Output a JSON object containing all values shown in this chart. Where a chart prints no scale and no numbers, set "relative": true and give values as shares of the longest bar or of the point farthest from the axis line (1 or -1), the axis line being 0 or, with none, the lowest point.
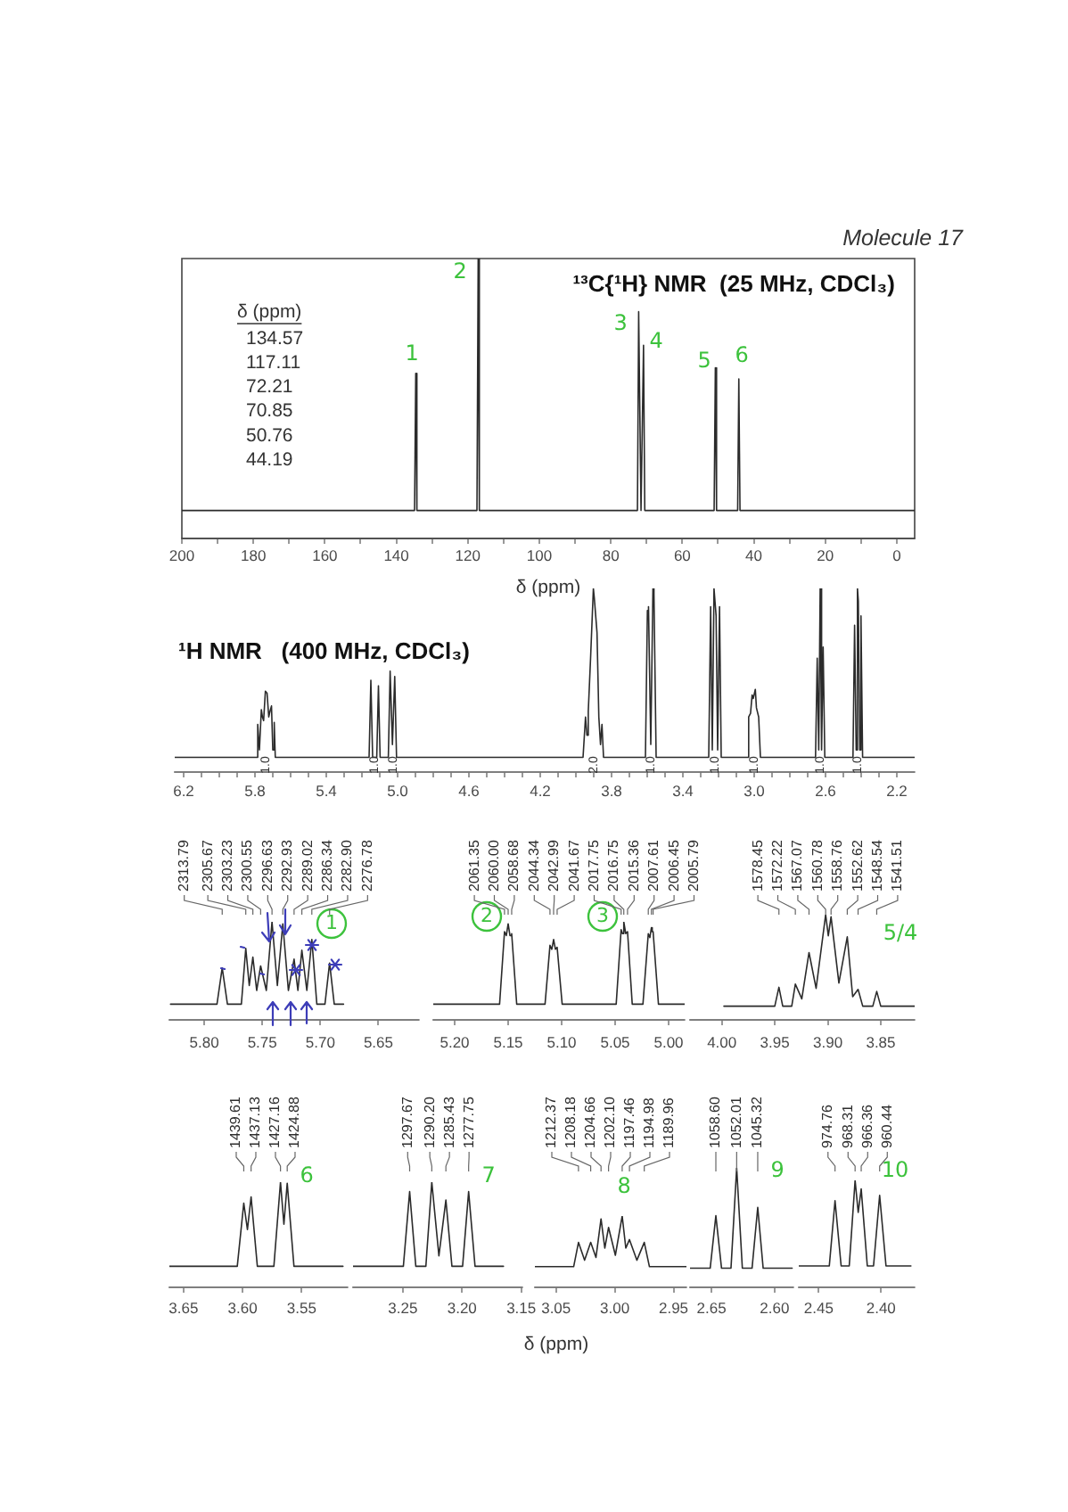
{
  "chart_data": [
    {
      "type": "line",
      "title": "¹³C{¹H} NMR  (25 MHz, CDCl₃)",
      "xlabel": "δ (ppm)",
      "relative": true,
      "xlim": [
        200,
        -5
      ],
      "xticks": [
        200,
        {
          "value": 190,
          "label": null
        },
        180,
        {
          "value": 170,
          "label": null
        },
        160,
        {
          "value": 150,
          "label": null
        },
        140,
        {
          "value": 130,
          "label": null
        },
        120,
        {
          "value": 110,
          "label": null
        },
        100,
        {
          "value": 90,
          "label": null
        },
        80,
        {
          "value": 70,
          "label": null
        },
        60,
        {
          "value": 50,
          "label": null
        },
        40,
        {
          "value": 30,
          "label": null
        },
        20,
        {
          "value": 10,
          "label": null
        },
        0
      ],
      "series": [
        {
          "color": "#2b2b2b",
          "x": [
            200,
            134.9,
            134.57,
            134.25,
            117.45,
            117.11,
            116.78,
            72.55,
            72.21,
            71.55,
            70.85,
            70.5,
            51.1,
            50.76,
            50.42,
            44.52,
            44.19,
            43.86,
            -5
          ],
          "values": [
            0.1,
            0.1,
            0.59,
            0.1,
            0.1,
            1,
            0.1,
            0.1,
            0.81,
            0.1,
            0.69,
            0.1,
            0.1,
            0.61,
            0.1,
            0.1,
            0.57,
            0.1,
            0.1
          ]
        }
      ],
      "annotations": [
        "Molecule 17",
        "δ (ppm)",
        "134.57",
        "117.11",
        "72.21",
        "70.85",
        "50.76",
        "44.19",
        "1",
        "2",
        "3",
        "4",
        "5",
        "6"
      ]
    },
    {
      "type": "line",
      "title": "¹H NMR   (400 MHz, CDCl₃)",
      "relative": true,
      "xlim": [
        6.25,
        2.1
      ],
      "xticks": [
        6.2,
        {
          "value": 6.1,
          "label": null
        },
        {
          "value": 6,
          "label": null
        },
        {
          "value": 5.9,
          "label": null
        },
        5.8,
        {
          "value": 5.7,
          "label": null
        },
        {
          "value": 5.6,
          "label": null
        },
        {
          "value": 5.5,
          "label": null
        },
        5.4,
        {
          "value": 5.3,
          "label": null
        },
        {
          "value": 5.2,
          "label": null
        },
        {
          "value": 5.1,
          "label": null
        },
        {
          "value": 5,
          "label": "5.0"
        },
        {
          "value": 4.9,
          "label": null
        },
        {
          "value": 4.8,
          "label": null
        },
        {
          "value": 4.7,
          "label": null
        },
        4.6,
        {
          "value": 4.5,
          "label": null
        },
        {
          "value": 4.4,
          "label": null
        },
        {
          "value": 4.3,
          "label": null
        },
        4.2,
        {
          "value": 4.1,
          "label": null
        },
        {
          "value": 4,
          "label": null
        },
        {
          "value": 3.9,
          "label": null
        },
        3.8,
        {
          "value": 3.7,
          "label": null
        },
        {
          "value": 3.6,
          "label": null
        },
        {
          "value": 3.5,
          "label": null
        },
        3.4,
        {
          "value": 3.3,
          "label": null
        },
        {
          "value": 3.2,
          "label": null
        },
        {
          "value": 3.1,
          "label": null
        },
        {
          "value": 3,
          "label": "3.0"
        },
        {
          "value": 2.9,
          "label": null
        },
        {
          "value": 2.8,
          "label": null
        },
        {
          "value": 2.7,
          "label": null
        },
        2.6,
        {
          "value": 2.5,
          "label": null
        },
        {
          "value": 2.4,
          "label": null
        },
        {
          "value": 2.3,
          "label": null
        },
        2.2
      ],
      "series": [
        {
          "color": "#2b2b2b",
          "x": [
            6.25,
            5.79,
            5.7845,
            5.775,
            5.7642,
            5.7581,
            5.7514,
            5.7416,
            5.7323,
            5.7226,
            5.7159,
            5.7073,
            5.7,
            5.692,
            5.686,
            5.16,
            5.15,
            5.14,
            5.117,
            5.1075,
            5.098,
            5.052,
            5.0419,
            5.029,
            5.0161,
            5.006,
            3.96,
            3.9461,
            3.938,
            3.9306,
            3.9177,
            3.902,
            3.8969,
            3.8816,
            3.8714,
            3.862,
            3.8538,
            3.845,
            3.61,
            3.599,
            3.5928,
            3.58,
            3.5679,
            3.5622,
            3.55,
            3.255,
            3.2442,
            3.235,
            3.2255,
            3.2136,
            3.205,
            3.1944,
            3.185,
            3.04,
            3.0309,
            3.0205,
            3.0117,
            3.0053,
            2.9937,
            2.9875,
            2.9749,
            2.965,
            2.656,
            2.6465,
            2.638,
            2.63,
            2.622,
            2.6133,
            2.604,
            2.446,
            2.4369,
            2.428,
            2.4208,
            2.4159,
            2.408,
            2.4011,
            2.392,
            2.1
          ],
          "values": [
            0.08,
            0.08,
            0.26,
            0.12,
            0.34,
            0.3,
            0.28,
            0.44,
            0.43,
            0.3,
            0.33,
            0.36,
            0.12,
            0.27,
            0.08,
            0.08,
            0.5,
            0.08,
            0.08,
            0.47,
            0.08,
            0.08,
            0.55,
            0.15,
            0.52,
            0.08,
            0.08,
            0.3,
            0.2,
            0.33,
            0.62,
            1,
            0.95,
            0.76,
            0.3,
            0.15,
            0.26,
            0.08,
            0.08,
            0.88,
            0.9,
            0.15,
            1,
            0.97,
            0.08,
            0.08,
            0.9,
            0.12,
            1,
            0.85,
            0.12,
            0.9,
            0.08,
            0.08,
            0.3,
            0.32,
            0.42,
            0.4,
            0.45,
            0.35,
            0.3,
            0.08,
            0.08,
            0.62,
            0.12,
            1,
            0.12,
            0.68,
            0.08,
            0.08,
            0.8,
            0.12,
            1,
            0.93,
            0.12,
            0.85,
            0.08,
            0.08
          ]
        }
      ],
      "annotations": [
        "1.0",
        "1.0",
        "1.0",
        "2.0",
        "1.0",
        "1.0",
        "1.0",
        "1.0",
        "1.0"
      ]
    },
    {
      "type": "line",
      "relative": true,
      "xlim": [
        5.83,
        5.615
      ],
      "xticks": [
        {
          "value": 5.8,
          "label": "5.80"
        },
        5.75,
        {
          "value": 5.7,
          "label": "5.70"
        },
        5.65
      ],
      "series": [
        {
          "color": "#2b2b2b",
          "x": [
            5.829,
            5.789,
            5.7845,
            5.78,
            5.768,
            5.7642,
            5.7612,
            5.7581,
            5.7548,
            5.7514,
            5.7465,
            5.7416,
            5.737,
            5.7323,
            5.7275,
            5.7226,
            5.7193,
            5.7159,
            5.7116,
            5.7073,
            5.703,
            5.696,
            5.692,
            5.688,
            5.68
          ],
          "values": [
            0.16,
            0.16,
            0.53,
            0.16,
            0.16,
            0.73,
            0.35,
            0.64,
            0.3,
            0.55,
            0.3,
            1,
            0.35,
            0.98,
            0.3,
            0.62,
            0.3,
            0.71,
            0.3,
            0.82,
            0.16,
            0.16,
            0.58,
            0.16,
            0.16
          ]
        }
      ],
      "annotations": [
        {
          "text": "2313.79",
          "x": 5.7845
        },
        {
          "text": "2305.67",
          "x": 5.7642
        },
        {
          "text": "2303.23",
          "x": 5.7581
        },
        {
          "text": "2300.55",
          "x": 5.7514
        },
        {
          "text": "2296.63",
          "x": 5.7416
        },
        {
          "text": "2292.93",
          "x": 5.7323
        },
        {
          "text": "2289.02",
          "x": 5.7226
        },
        {
          "text": "2286.34",
          "x": 5.7159
        },
        {
          "text": "2282.90",
          "x": 5.7073
        },
        {
          "text": "2276.78",
          "x": 5.692
        },
        "1"
      ]
    },
    {
      "type": "line",
      "relative": true,
      "xlim": [
        5.22,
        4.985
      ],
      "xticks": [
        {
          "value": 5.2,
          "label": "5.20"
        },
        5.15,
        {
          "value": 5.1,
          "label": "5.10"
        },
        5.05,
        {
          "value": 5,
          "label": "5.00"
        }
      ],
      "series": [
        {
          "color": "#2b2b2b",
          "x": [
            5.22,
            5.158,
            5.1534,
            5.1517,
            5.15,
            5.1483,
            5.1467,
            5.142,
            5.1155,
            5.1109,
            5.1092,
            5.1075,
            5.1058,
            5.1042,
            5.0995,
            5.049,
            5.0444,
            5.0431,
            5.0419,
            5.0401,
            5.0384,
            5.034,
            5.024,
            5.019,
            5.0175,
            5.0161,
            5.0153,
            5.0145,
            5.0095,
            4.985
          ],
          "values": [
            0.16,
            0.16,
            0.9,
            0.86,
            0.98,
            0.86,
            0.88,
            0.16,
            0.16,
            0.76,
            0.72,
            0.82,
            0.72,
            0.74,
            0.16,
            0.16,
            0.92,
            0.88,
            1,
            0.88,
            0.9,
            0.16,
            0.16,
            0.88,
            0.84,
            0.94,
            0.9,
            0.9,
            0.16,
            0.16
          ]
        }
      ],
      "annotations": [
        {
          "text": "2061.35",
          "x": 5.1534
        },
        {
          "text": "2060.00",
          "x": 5.15
        },
        {
          "text": "2058.68",
          "x": 5.1467
        },
        {
          "text": "2044.34",
          "x": 5.1109
        },
        {
          "text": "2042.99",
          "x": 5.1075
        },
        {
          "text": "2041.67",
          "x": 5.1042
        },
        {
          "text": "2017.75",
          "x": 5.0444
        },
        {
          "text": "2016.75",
          "x": 5.0419
        },
        {
          "text": "2015.36",
          "x": 5.0384
        },
        {
          "text": "2007.61",
          "x": 5.019
        },
        {
          "text": "2006.45",
          "x": 5.0161
        },
        {
          "text": "2005.79",
          "x": 5.0145
        },
        "2",
        "3"
      ]
    },
    {
      "type": "line",
      "relative": true,
      "xlim": [
        4.03,
        3.818
      ],
      "xticks": [
        {
          "value": 4,
          "label": "4.00"
        },
        3.95,
        {
          "value": 3.9,
          "label": "3.90"
        },
        3.85
      ],
      "series": [
        {
          "color": "#2b2b2b",
          "x": [
            3.998,
            3.95,
            3.9461,
            3.9425,
            3.934,
            3.9306,
            3.9245,
            3.9177,
            3.911,
            3.902,
            3.8995,
            3.8969,
            3.8895,
            3.8816,
            3.8765,
            3.8714,
            3.867,
            3.8575,
            3.8538,
            3.85,
            3.818
          ],
          "values": [
            0.13,
            0.13,
            0.31,
            0.13,
            0.13,
            0.34,
            0.2,
            0.64,
            0.3,
            1,
            0.8,
            0.98,
            0.35,
            0.79,
            0.22,
            0.29,
            0.13,
            0.13,
            0.27,
            0.13,
            0.13
          ]
        }
      ],
      "annotations": [
        {
          "text": "1578.45",
          "x": 3.9461
        },
        {
          "text": "1572.22",
          "x": 3.9306
        },
        {
          "text": "1567.07",
          "x": 3.9177
        },
        {
          "text": "1560.78",
          "x": 3.902
        },
        {
          "text": "1558.76",
          "x": 3.8969
        },
        {
          "text": "1552.62",
          "x": 3.8816
        },
        {
          "text": "1548.54",
          "x": 3.8714
        },
        {
          "text": "1541.51",
          "x": 3.8538
        },
        "5/4"
      ]
    },
    {
      "type": "line",
      "relative": true,
      "xlim": [
        3.662,
        3.511
      ],
      "xticks": [
        3.65,
        {
          "value": 3.6,
          "label": "3.60"
        },
        3.55
      ],
      "series": [
        {
          "color": "#2b2b2b",
          "x": [
            3.662,
            3.6045,
            3.599,
            3.5959,
            3.5928,
            3.5875,
            3.5735,
            3.5679,
            3.565,
            3.5622,
            3.5565,
            3.515
          ],
          "values": [
            0.2,
            0.2,
            0.8,
            0.55,
            0.86,
            0.2,
            0.2,
            1,
            0.6,
            0.99,
            0.2,
            0.2
          ]
        }
      ],
      "annotations": [
        {
          "text": "1439.61",
          "x": 3.599
        },
        {
          "text": "1437.13",
          "x": 3.5928
        },
        {
          "text": "1427.16",
          "x": 3.5679
        },
        {
          "text": "1424.88",
          "x": 3.5622
        },
        "6"
      ]
    },
    {
      "type": "line",
      "relative": true,
      "xlim": [
        3.292,
        3.149
      ],
      "xticks": [
        3.25,
        {
          "value": 3.2,
          "label": "3.20"
        },
        3.15
      ],
      "series": [
        {
          "color": "#2b2b2b",
          "x": [
            3.292,
            3.2495,
            3.2442,
            3.239,
            3.2305,
            3.2255,
            3.2195,
            3.2136,
            3.2085,
            3.1995,
            3.1944,
            3.189,
            3.165
          ],
          "values": [
            0.2,
            0.2,
            0.91,
            0.2,
            0.2,
            1,
            0.3,
            0.83,
            0.2,
            0.2,
            0.91,
            0.2,
            0.2
          ]
        }
      ],
      "annotations": [
        {
          "text": "1297.67",
          "x": 3.2442
        },
        {
          "text": "1290.20",
          "x": 3.2255
        },
        {
          "text": "1285.43",
          "x": 3.2136
        },
        {
          "text": "1277.75",
          "x": 3.1944
        },
        "7"
      ]
    },
    {
      "type": "line",
      "relative": true,
      "xlabel": "δ (ppm)",
      "xlim": [
        3.068,
        2.939
      ],
      "xticks": [
        3.05,
        {
          "value": 3,
          "label": "3.00"
        },
        2.95
      ],
      "series": [
        {
          "color": "#2b2b2b",
          "x": [
            3.068,
            3.035,
            3.0309,
            3.0257,
            3.0205,
            3.016,
            3.0117,
            3.0085,
            3.0053,
            2.9995,
            2.9937,
            2.9906,
            2.9875,
            2.9812,
            2.9749,
            2.9705,
            2.939
          ],
          "values": [
            0.29,
            0.29,
            0.63,
            0.38,
            0.63,
            0.42,
            0.96,
            0.55,
            0.84,
            0.45,
            1,
            0.55,
            0.67,
            0.38,
            0.63,
            0.29,
            0.29
          ]
        }
      ],
      "annotations": [
        {
          "text": "1212.37",
          "x": 3.0309
        },
        {
          "text": "1208.18",
          "x": 3.0205
        },
        {
          "text": "1204.66",
          "x": 3.0117
        },
        {
          "text": "1202.10",
          "x": 3.0053
        },
        {
          "text": "1197.46",
          "x": 2.9937
        },
        {
          "text": "1194.98",
          "x": 2.9875
        },
        {
          "text": "1189.96",
          "x": 2.9749
        },
        "8"
      ]
    },
    {
      "type": "line",
      "relative": true,
      "xlim": [
        2.667,
        2.585
      ],
      "xticks": [
        2.65,
        {
          "value": 2.6,
          "label": "2.60"
        }
      ],
      "series": [
        {
          "color": "#2b2b2b",
          "x": [
            2.667,
            2.651,
            2.6465,
            2.642,
            2.6345,
            2.63,
            2.6255,
            2.6178,
            2.6133,
            2.609,
            2.586
          ],
          "values": [
            0.16,
            0.16,
            0.6,
            0.16,
            0.16,
            1,
            0.16,
            0.16,
            0.67,
            0.16,
            0.16
          ]
        }
      ],
      "annotations": [
        {
          "text": "1058.60",
          "x": 2.6465
        },
        {
          "text": "1052.01",
          "x": 2.63
        },
        {
          "text": "1045.32",
          "x": 2.6133
        },
        "9"
      ]
    },
    {
      "type": "line",
      "relative": true,
      "xlim": [
        2.466,
        2.373
      ],
      "xticks": [
        2.45,
        {
          "value": 2.4,
          "label": "2.40"
        }
      ],
      "series": [
        {
          "color": "#2b2b2b",
          "x": [
            2.466,
            2.4415,
            2.4369,
            2.432,
            2.4255,
            2.4208,
            2.4183,
            2.4159,
            2.411,
            2.406,
            2.4011,
            2.396,
            2.376
          ],
          "values": [
            0.2,
            0.2,
            0.81,
            0.2,
            0.2,
            1,
            0.7,
            0.92,
            0.2,
            0.2,
            0.86,
            0.2,
            0.2
          ]
        }
      ],
      "annotations": [
        {
          "text": "974.76",
          "x": 2.4369
        },
        {
          "text": "968.31",
          "x": 2.4208
        },
        {
          "text": "966.36",
          "x": 2.4159
        },
        {
          "text": "960.44",
          "x": 2.4011
        },
        "10"
      ]
    }
  ]
}
